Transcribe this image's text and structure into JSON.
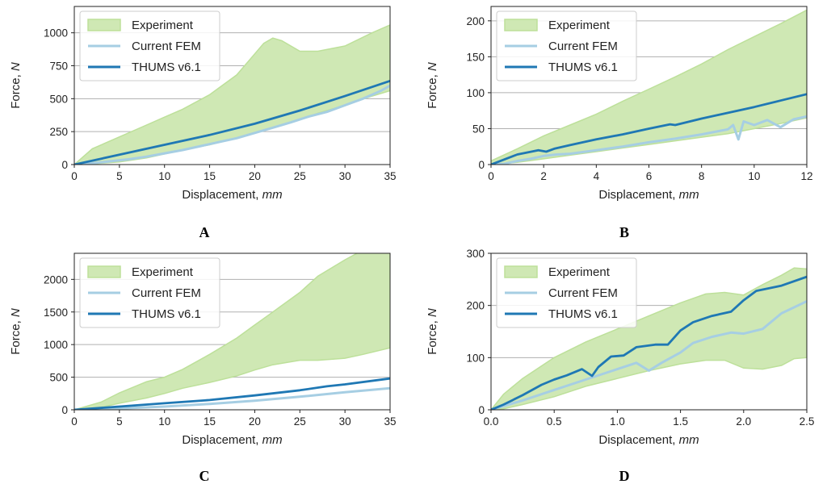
{
  "chart_data": [
    {
      "type": "line",
      "panel_label": "A",
      "xlabel": "Displacement, ",
      "xlabel_unit": "mm",
      "ylabel": "Force, ",
      "ylabel_unit": "N",
      "xlim": [
        0,
        35
      ],
      "ylim": [
        0,
        1200
      ],
      "xticks": [
        0,
        5,
        10,
        15,
        20,
        25,
        30,
        35
      ],
      "yticks": [
        0,
        250,
        500,
        750,
        1000
      ],
      "grid": "horizontal",
      "legend": "top-left",
      "series": [
        {
          "name": "Experiment",
          "kind": "band",
          "color": "#cfe8b4",
          "edge_color": "#bde09a",
          "x": [
            0,
            2,
            5,
            8,
            10,
            12,
            15,
            18,
            20,
            21,
            22,
            23,
            25,
            27,
            30,
            33,
            35
          ],
          "lower": [
            0,
            5,
            20,
            50,
            80,
            110,
            150,
            200,
            240,
            260,
            280,
            300,
            340,
            390,
            450,
            520,
            560
          ],
          "upper": [
            0,
            120,
            210,
            300,
            360,
            420,
            530,
            680,
            840,
            920,
            960,
            940,
            860,
            860,
            900,
            1000,
            1060
          ]
        },
        {
          "name": "Current FEM",
          "kind": "line",
          "color": "#a6cee3",
          "x": [
            0,
            2,
            4,
            6,
            8,
            10,
            12,
            14,
            16,
            18,
            20,
            22,
            24,
            26,
            28,
            30,
            32,
            34,
            35
          ],
          "y": [
            0,
            10,
            25,
            40,
            60,
            85,
            110,
            140,
            170,
            200,
            240,
            280,
            320,
            365,
            400,
            450,
            500,
            560,
            600
          ]
        },
        {
          "name": "THUMS v6.1",
          "kind": "line",
          "color": "#1f78b4",
          "x": [
            0,
            5,
            10,
            15,
            20,
            25,
            30,
            35
          ],
          "y": [
            0,
            75,
            150,
            225,
            310,
            410,
            520,
            635
          ]
        }
      ]
    },
    {
      "type": "line",
      "panel_label": "B",
      "xlabel": "Displacement, ",
      "xlabel_unit": "mm",
      "ylabel": "Force, ",
      "ylabel_unit": "N",
      "xlim": [
        0,
        12
      ],
      "ylim": [
        0,
        220
      ],
      "xticks": [
        0,
        2,
        4,
        6,
        8,
        10,
        12
      ],
      "yticks": [
        0,
        50,
        100,
        150,
        200
      ],
      "grid": "horizontal",
      "legend": "top-left",
      "series": [
        {
          "name": "Experiment",
          "kind": "band",
          "color": "#cfe8b4",
          "edge_color": "#bde09a",
          "x": [
            0,
            1,
            2,
            3,
            4,
            5,
            6,
            7,
            8,
            9,
            10,
            11,
            12
          ],
          "lower": [
            0,
            3,
            8,
            13,
            18,
            23,
            28,
            33,
            38,
            43,
            50,
            57,
            65
          ],
          "upper": [
            5,
            22,
            40,
            55,
            70,
            88,
            105,
            122,
            140,
            160,
            178,
            196,
            215
          ]
        },
        {
          "name": "Current FEM",
          "kind": "line",
          "color": "#a6cee3",
          "x": [
            0,
            0.5,
            1,
            1.5,
            2,
            2.5,
            3,
            4,
            5,
            6,
            7,
            8,
            9,
            9.2,
            9.4,
            9.6,
            10,
            10.5,
            11,
            11.5,
            12
          ],
          "y": [
            0,
            1,
            5,
            8,
            12,
            14,
            15,
            20,
            25,
            31,
            36,
            42,
            49,
            55,
            35,
            60,
            55,
            62,
            52,
            63,
            67
          ]
        },
        {
          "name": "THUMS v6.1",
          "kind": "line",
          "color": "#1f78b4",
          "x": [
            0,
            1,
            1.8,
            2.1,
            2.4,
            3,
            4,
            5,
            6,
            6.8,
            7,
            8,
            9,
            10,
            11,
            12
          ],
          "y": [
            0,
            14,
            20,
            18,
            22,
            27,
            35,
            42,
            50,
            56,
            55,
            64,
            72,
            80,
            89,
            98
          ]
        }
      ]
    },
    {
      "type": "line",
      "panel_label": "C",
      "xlabel": "Displacement, ",
      "xlabel_unit": "mm",
      "ylabel": "Force, ",
      "ylabel_unit": "N",
      "xlim": [
        0,
        35
      ],
      "ylim": [
        0,
        2400
      ],
      "xticks": [
        0,
        5,
        10,
        15,
        20,
        25,
        30,
        35
      ],
      "yticks": [
        0,
        500,
        1000,
        1500,
        2000
      ],
      "grid": "horizontal",
      "legend": "top-left",
      "series": [
        {
          "name": "Experiment",
          "kind": "band",
          "color": "#cfe8b4",
          "edge_color": "#bde09a",
          "x": [
            0,
            3,
            5,
            8,
            10,
            12,
            15,
            18,
            20,
            22,
            25,
            27,
            30,
            32,
            35
          ],
          "lower": [
            0,
            40,
            100,
            180,
            250,
            330,
            420,
            520,
            610,
            690,
            760,
            760,
            790,
            850,
            950
          ],
          "upper": [
            0,
            120,
            260,
            430,
            500,
            620,
            850,
            1100,
            1300,
            1500,
            1800,
            2050,
            2300,
            2450,
            2500
          ]
        },
        {
          "name": "Current FEM",
          "kind": "line",
          "color": "#a6cee3",
          "x": [
            0,
            5,
            10,
            15,
            20,
            25,
            30,
            35
          ],
          "y": [
            0,
            20,
            50,
            90,
            140,
            200,
            270,
            330
          ]
        },
        {
          "name": "THUMS v6.1",
          "kind": "line",
          "color": "#1f78b4",
          "x": [
            0,
            5,
            10,
            15,
            20,
            25,
            28,
            30,
            35
          ],
          "y": [
            0,
            50,
            100,
            150,
            220,
            300,
            360,
            390,
            480
          ]
        }
      ]
    },
    {
      "type": "line",
      "panel_label": "D",
      "xlabel": "Displacement, ",
      "xlabel_unit": "mm",
      "ylabel": "Force, ",
      "ylabel_unit": "N",
      "xlim": [
        0,
        2.5
      ],
      "ylim": [
        0,
        300
      ],
      "xticks": [
        "0.0",
        "0.5",
        "1.0",
        "1.5",
        "2.0",
        "2.5"
      ],
      "yticks": [
        0,
        100,
        200,
        300
      ],
      "grid": "horizontal",
      "legend": "top-left",
      "series": [
        {
          "name": "Experiment",
          "kind": "band",
          "color": "#cfe8b4",
          "edge_color": "#bde09a",
          "x": [
            0,
            0.1,
            0.25,
            0.5,
            0.75,
            1.0,
            1.25,
            1.5,
            1.7,
            1.85,
            2.0,
            2.15,
            2.3,
            2.4,
            2.5
          ],
          "lower": [
            0,
            2,
            10,
            25,
            45,
            60,
            75,
            88,
            95,
            95,
            80,
            78,
            85,
            98,
            100
          ],
          "upper": [
            0,
            30,
            60,
            100,
            130,
            155,
            180,
            205,
            222,
            225,
            220,
            240,
            258,
            272,
            270
          ]
        },
        {
          "name": "Current FEM",
          "kind": "line",
          "color": "#a6cee3",
          "x": [
            0,
            0.25,
            0.5,
            0.75,
            1.0,
            1.15,
            1.25,
            1.35,
            1.5,
            1.6,
            1.75,
            1.9,
            2.0,
            2.15,
            2.3,
            2.5
          ],
          "y": [
            0,
            18,
            38,
            58,
            78,
            90,
            75,
            90,
            110,
            128,
            140,
            148,
            146,
            155,
            185,
            208
          ]
        },
        {
          "name": "THUMS v6.1",
          "kind": "line",
          "color": "#1f78b4",
          "x": [
            0,
            0.1,
            0.25,
            0.4,
            0.5,
            0.6,
            0.72,
            0.8,
            0.85,
            0.95,
            1.05,
            1.15,
            1.3,
            1.4,
            1.5,
            1.6,
            1.75,
            1.9,
            2.0,
            2.1,
            2.3,
            2.5
          ],
          "y": [
            0,
            10,
            28,
            48,
            58,
            66,
            78,
            65,
            82,
            102,
            104,
            120,
            125,
            125,
            152,
            168,
            180,
            188,
            210,
            228,
            238,
            255
          ]
        }
      ]
    }
  ]
}
